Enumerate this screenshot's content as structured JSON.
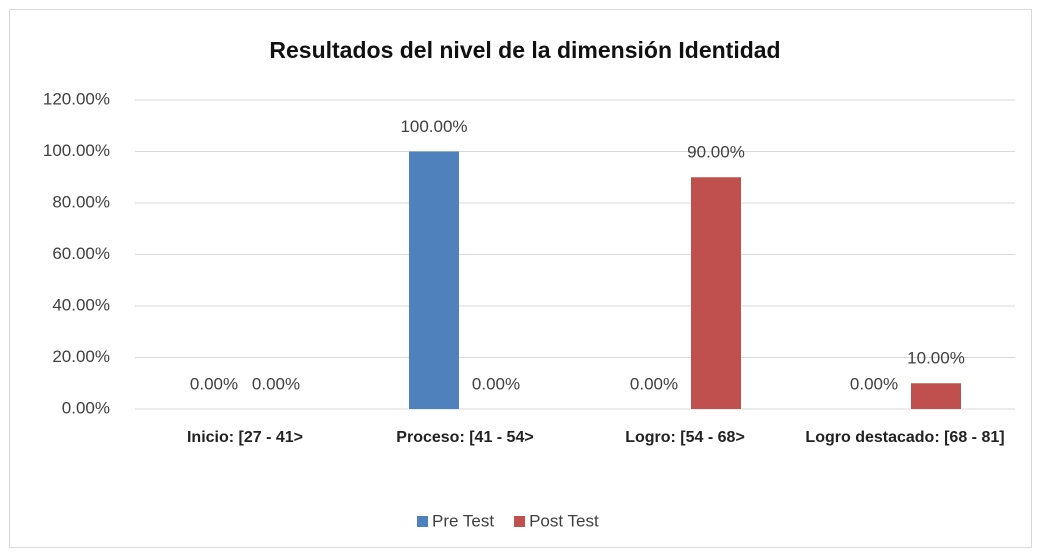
{
  "chart_data": {
    "type": "bar",
    "title": "Resultados del nivel de la dimensión Identidad",
    "categories": [
      "Inicio: [27 - 41>",
      "Proceso: [41 - 54>",
      "Logro: [54 - 68>",
      "Logro destacado: [68 - 81]"
    ],
    "series": [
      {
        "name": "Pre Test",
        "color": "#4f81bd",
        "values": [
          0,
          100,
          0,
          0
        ],
        "value_labels": [
          "0.00%",
          "100.00%",
          "0.00%",
          "0.00%"
        ]
      },
      {
        "name": "Post Test",
        "color": "#c0504d",
        "values": [
          0,
          0,
          90,
          10
        ],
        "value_labels": [
          "0.00%",
          "0.00%",
          "90.00%",
          "10.00%"
        ]
      }
    ],
    "ylim": [
      0,
      120
    ],
    "yticks": [
      {
        "value": 0,
        "label": "0.00%"
      },
      {
        "value": 20,
        "label": "20.00%"
      },
      {
        "value": 40,
        "label": "40.00%"
      },
      {
        "value": 60,
        "label": "60.00%"
      },
      {
        "value": 80,
        "label": "80.00%"
      },
      {
        "value": 100,
        "label": "100.00%"
      },
      {
        "value": 120,
        "label": "120.00%"
      }
    ],
    "grid": true,
    "legend": "bottom"
  }
}
